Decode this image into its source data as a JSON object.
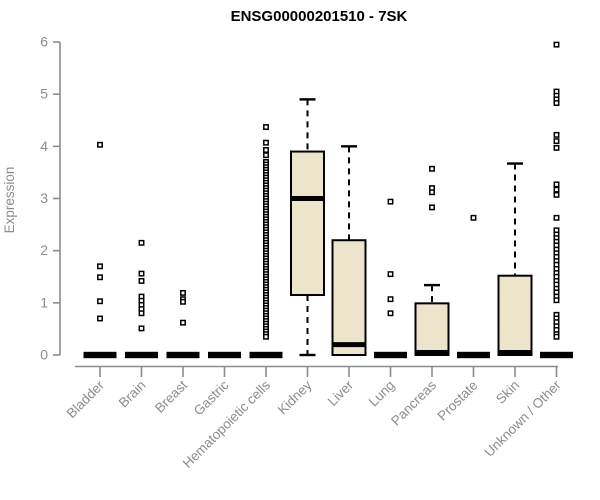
{
  "window": {
    "title": "ENSG00000201510 - 7SK"
  },
  "chart_data": {
    "type": "boxplot",
    "title": "ENSG00000201510 - 7SK",
    "xlabel": "",
    "ylabel": "Expression",
    "ylim": [
      0,
      6
    ],
    "yticks": [
      0,
      1,
      2,
      3,
      4,
      5,
      6
    ],
    "grid": false,
    "legend": false,
    "categories": [
      "Bladder",
      "Brain",
      "Breast",
      "Gastric",
      "Hematopoietic cells",
      "Kidney",
      "Liver",
      "Lung",
      "Pancreas",
      "Prostate",
      "Skin",
      "Unknown / Other"
    ],
    "series": [
      {
        "name": "Bladder",
        "q1": 0,
        "median": 0,
        "q3": 0,
        "whisker_low": 0,
        "whisker_high": 0,
        "outliers": [
          4.03,
          1.7,
          1.49,
          1.03,
          0.7
        ]
      },
      {
        "name": "Brain",
        "q1": 0,
        "median": 0,
        "q3": 0,
        "whisker_low": 0,
        "whisker_high": 0,
        "outliers": [
          2.15,
          1.56,
          1.42,
          1.12,
          1.04,
          0.96,
          0.88,
          0.8,
          0.51
        ]
      },
      {
        "name": "Breast",
        "q1": 0,
        "median": 0,
        "q3": 0,
        "whisker_low": 0,
        "whisker_high": 0,
        "outliers": [
          1.19,
          1.07,
          1.02,
          0.62
        ]
      },
      {
        "name": "Gastric",
        "q1": 0,
        "median": 0,
        "q3": 0,
        "whisker_low": 0,
        "whisker_high": 0,
        "outliers": []
      },
      {
        "name": "Hematopoietic cells",
        "q1": 0,
        "median": 0,
        "q3": 0,
        "whisker_low": 0,
        "whisker_high": 0,
        "outliers": [
          4.37,
          4.07,
          3.93,
          3.83,
          3.7,
          3.65,
          3.6,
          3.55,
          3.5,
          3.45,
          3.4,
          3.35,
          3.3,
          3.25,
          3.2,
          3.15,
          3.1,
          3.05,
          3.0,
          2.95,
          2.9,
          2.85,
          2.8,
          2.75,
          2.7,
          2.65,
          2.6,
          2.55,
          2.5,
          2.45,
          2.4,
          2.35,
          2.3,
          2.25,
          2.2,
          2.15,
          2.1,
          2.05,
          2.0,
          1.95,
          1.9,
          1.85,
          1.8,
          1.75,
          1.7,
          1.65,
          1.6,
          1.55,
          1.5,
          1.45,
          1.4,
          1.35,
          1.3,
          1.25,
          1.2,
          1.15,
          1.1,
          1.05,
          1.0,
          0.95,
          0.9,
          0.85,
          0.8,
          0.75,
          0.7,
          0.65,
          0.6,
          0.55,
          0.5,
          0.45,
          0.4,
          0.35
        ]
      },
      {
        "name": "Kidney",
        "q1": 1.15,
        "median": 3.0,
        "q3": 3.9,
        "whisker_low": 0,
        "whisker_high": 4.9,
        "outliers": []
      },
      {
        "name": "Liver",
        "q1": 0,
        "median": 0.2,
        "q3": 2.2,
        "whisker_low": 0,
        "whisker_high": 4.0,
        "outliers": []
      },
      {
        "name": "Lung",
        "q1": 0,
        "median": 0,
        "q3": 0,
        "whisker_low": 0,
        "whisker_high": 0,
        "outliers": [
          2.94,
          1.55,
          1.07,
          0.8
        ]
      },
      {
        "name": "Pancreas",
        "q1": 0,
        "median": 0,
        "q3": 0.99,
        "whisker_low": 0,
        "whisker_high": 1.34,
        "outliers": [
          3.57,
          3.2,
          3.12,
          2.83
        ]
      },
      {
        "name": "Prostate",
        "q1": 0,
        "median": 0,
        "q3": 0,
        "whisker_low": 0,
        "whisker_high": 0,
        "outliers": [
          2.63
        ]
      },
      {
        "name": "Skin",
        "q1": 0,
        "median": 0,
        "q3": 1.52,
        "whisker_low": 0,
        "whisker_high": 3.67,
        "outliers": []
      },
      {
        "name": "Unknown / Other",
        "q1": 0,
        "median": 0,
        "q3": 0,
        "whisker_low": 0,
        "whisker_high": 0,
        "outliers": [
          5.95,
          5.05,
          4.97,
          4.9,
          4.83,
          4.22,
          4.1,
          3.97,
          3.27,
          3.17,
          3.07,
          2.63,
          2.39,
          2.31,
          2.24,
          2.17,
          2.1,
          2.02,
          1.95,
          1.88,
          1.8,
          1.73,
          1.65,
          1.57,
          1.5,
          1.42,
          1.35,
          1.27,
          1.2,
          1.12,
          1.05,
          0.77,
          0.7,
          0.63,
          0.55,
          0.48,
          0.4,
          0.35
        ]
      }
    ],
    "colors": {
      "box_fill": "#ece5cb",
      "box_border": "#000000",
      "median": "#000000",
      "whisker": "#000000",
      "outlier_stroke": "#000000",
      "axis": "#8c8c8c",
      "tick_label": "#8c8c8c",
      "title": "#000000",
      "background": "#ffffff"
    }
  }
}
